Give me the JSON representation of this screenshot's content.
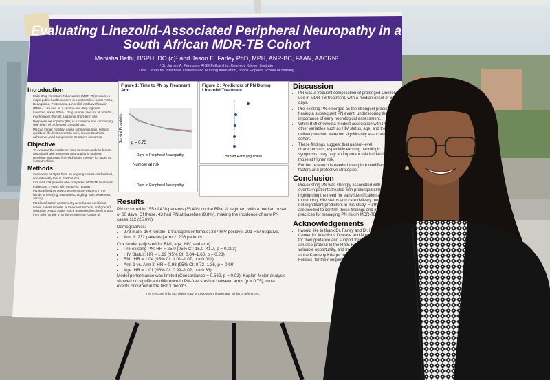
{
  "poster": {
    "title": "Evaluating Linezolid-Associated Peripheral Neuropathy in a South African MDR-TB Cohort",
    "authors": "Manisha Bethi, BSPH, DO (c)¹ and Jason E. Farley PhD, MPH, ANP-BC, FAAN, AACRN²",
    "affiliations": [
      "¹Dr. James A. Ferguson RISE Fellowship, Kennedy Krieger Institute",
      "²The Center for Infectious Disease and Nursing Innovation, Johns Hopkins School of Nursing"
    ],
    "left_sections": [
      {
        "heading": "Introduction",
        "items": [
          "Multi-Drug Resistant Tuberculosis (MDR-TB) remains a major public health concern in countries like South Africa.",
          "Bedaquiline, Pretomanid, Linezolid, and Levofloxacin (BPaL-L) is used as a second-line drug regimen.",
          "Linezolid, a key BPaL-L drug, is now used for ≥6 months, much longer than its traditional short-term use.",
          "Peripheral neuropathy (PN) is a common and concerning side effect of prolonged Linezolid use.",
          "PN can impair mobility, cause substantial pain, reduce quality of life, limit access to care, reduce treatment adherence, and compromise treatment outcomes."
        ]
      },
      {
        "heading": "Objective",
        "items": [
          "To evaluate the incidence, time to onset, and risk factors associated with peripheral neuropathy in patients receiving prolonged linezolid-based therapy for MDR-TB in South Africa."
        ]
      },
      {
        "heading": "Methods",
        "items": [
          "Secondary analysis from an ongoing cluster-randomized, non-inferiority trial in South Africa.",
          "Included 438 patients who completed MDR-TB treatment in the past 2 years with the BPaL regimen.",
          "PN is defined as new or worsening symptoms in the hands or feet (e.g., numbness, tingling, pain, weakness, ataxia).",
          "PN classification and severity were based on clinical notes, patient reports, or treatment records, and graded using the DAIDS scale, which assesses functional impact from mild (Grade 1) to life-threatening (Grade 4)."
        ]
      }
    ],
    "figure1": {
      "title": "Figure 1: Time to PN by Treatment Arm",
      "y_label": "Survival Probability",
      "x_label": "Days to Peripheral Neuropathy",
      "p_value": "p = 0.75",
      "risk_title": "Number at risk"
    },
    "figure2": {
      "title": "Figure 2 : Predictors of PN During Linezolid Treatment",
      "x_label": "Hazard Ratio (log scale)"
    },
    "results": {
      "heading": "Results",
      "summary": "PN occurred in 155 of 438 patients (35.4%) on the BPaL-L regimen, with a median onset of 60 days. Of these, 43 had PN at baseline (9.8%), making the incidence of new PN cases 112 (25.6%).",
      "demographics_title": "Demographics:",
      "demographics": [
        "273 male, 164 female, 1 transgender female; 237 HIV positive, 201 HIV negative.",
        "Arm 1: 232 patients | Arm 2: 206 patients"
      ],
      "cox_title": "Cox Model (adjusted for BMI, age, HIV, and arm):",
      "cox": [
        "Pre-existing PN: HR = 25.0 (95% CI: 15.0–41.7, p = 0.003)",
        "HIV Status: HR = 1.19 (95% CI: 0.84–1.68, p = 0.23)",
        "BMI: HR = 1.04 (95% CI: 1.01–1.07, p = 0.011)",
        "Arm 1 vs. Arm 2: HR = 0.98 (95% CI: 0.72–1.36, p = 0.90)",
        "Age: HR = 1.01 (95% CI: 0.99–1.02, p = 0.33)"
      ],
      "performance": "Model performance was limited (Concordance = 0.562, p = 0.02). Kaplan-Meier analysis showed no significant difference in PN-free survival between arms (p = 0.75); most events occurred in the first 3 months.",
      "qr_note": "The QR code links to a digital copy of this poster's figures and full list of references."
    },
    "right_sections": [
      {
        "heading": "Discussion",
        "items": [
          "PN was a frequent complication of prolonged Linezolid use in MDR-TB treatment, with a median onset of 60 days.",
          "Pre-existing PN emerged as the strongest predictor of having a subsequent PN event, underscoring the importance of early neurological assessment.",
          "While BMI showed a modest association with PN risk, other variables such as HIV status, age, and treatment delivery method were not significantly associated in this cohort.",
          "These findings suggest that patient-level characteristics, especially existing neurologic symptoms, may play an important role in identifying those at higher risk.",
          "Further research is needed to explore modifiable risk factors and protective strategies."
        ]
      },
      {
        "heading": "Conclusion",
        "items": [
          "Pre-existing PN was strongly associated with future PN events in patients treated with prolonged Linezolid, highlighting the need for early identification and monitoring. HIV status and care delivery models were not significant predictors in this study. Further studies are needed to confirm these findings and inform best practices for managing PN risk in MDR-TB treatment."
        ]
      },
      {
        "heading": "Acknowledgements",
        "items": [
          "I would like to thank Dr. Farley and Dr. Lowensen at the Center for Infectious Disease and Nursing Innovation for their guidance and support throughout this project. I am also grateful to the RISE Fellowship for this valuable opportunity, and my thanks go out to the staff at the Kennedy Krieger Institute, to my fellow Ferguson Fellows, for their ongoing support and encouragement."
        ]
      }
    ]
  }
}
